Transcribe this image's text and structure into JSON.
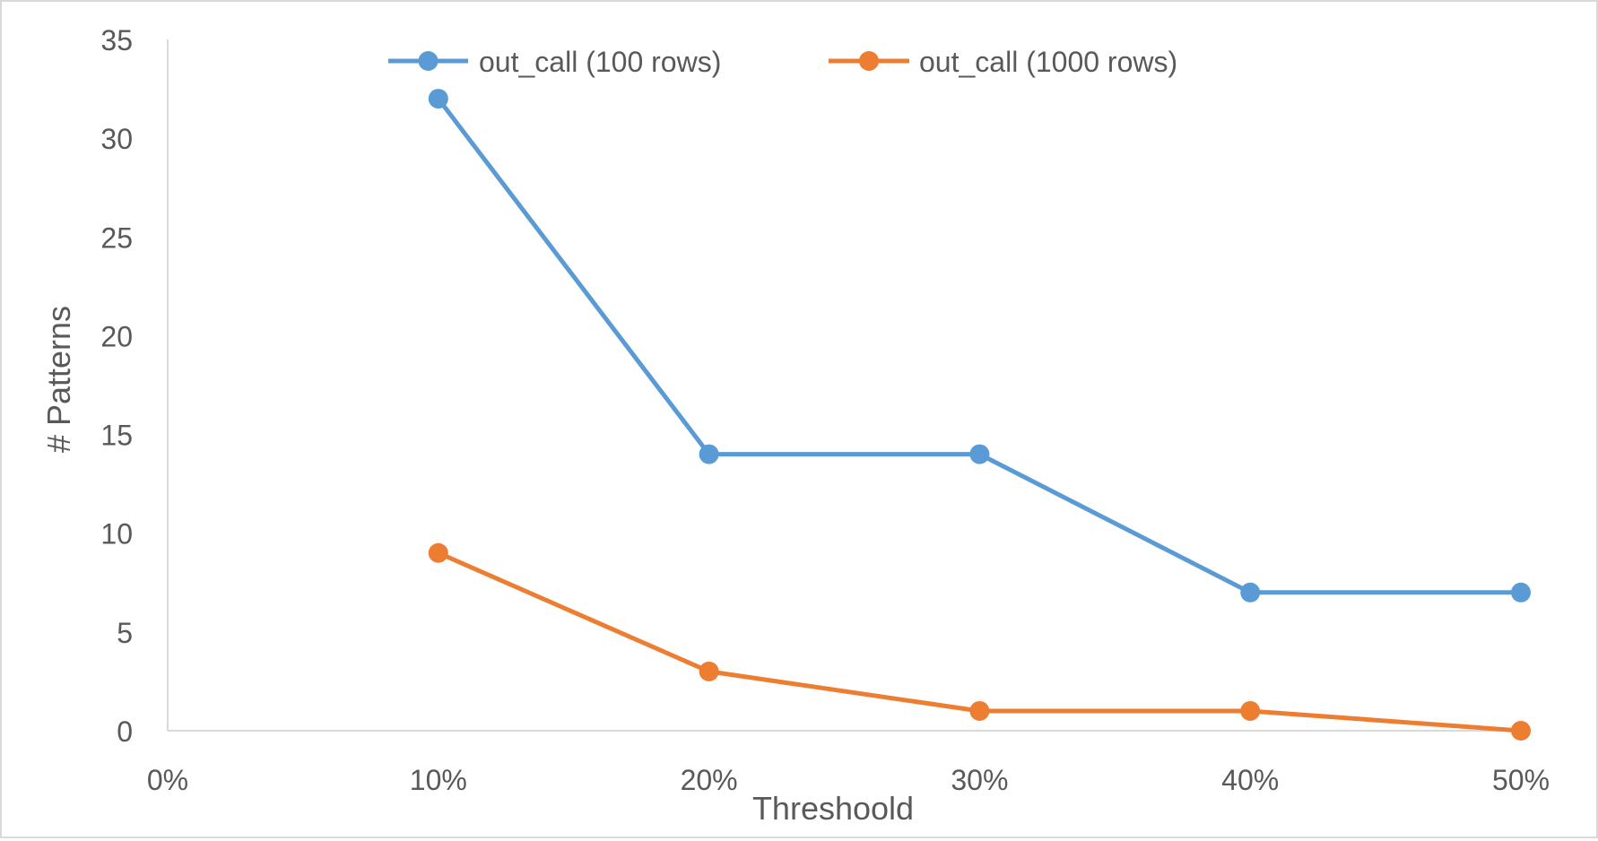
{
  "chart_data": {
    "type": "line",
    "title": "",
    "xlabel": "Threshoold",
    "ylabel": "# Patterns",
    "x_ticks": [
      "0%",
      "10%",
      "20%",
      "30%",
      "40%",
      "50%"
    ],
    "y_ticks": [
      "0",
      "5",
      "10",
      "15",
      "20",
      "25",
      "30",
      "35"
    ],
    "xlim": [
      0,
      50
    ],
    "ylim": [
      0,
      35
    ],
    "x_unit": "%",
    "grid": false,
    "legend_position": "top",
    "series": [
      {
        "name": "out_call (100 rows)",
        "color": "#5b9bd5",
        "x": [
          10,
          20,
          30,
          40,
          50
        ],
        "values": [
          32,
          14,
          14,
          7,
          7
        ]
      },
      {
        "name": "out_call (1000 rows)",
        "color": "#ed7d31",
        "x": [
          10,
          20,
          30,
          40,
          50
        ],
        "values": [
          9,
          3,
          1,
          1,
          0
        ]
      }
    ]
  }
}
